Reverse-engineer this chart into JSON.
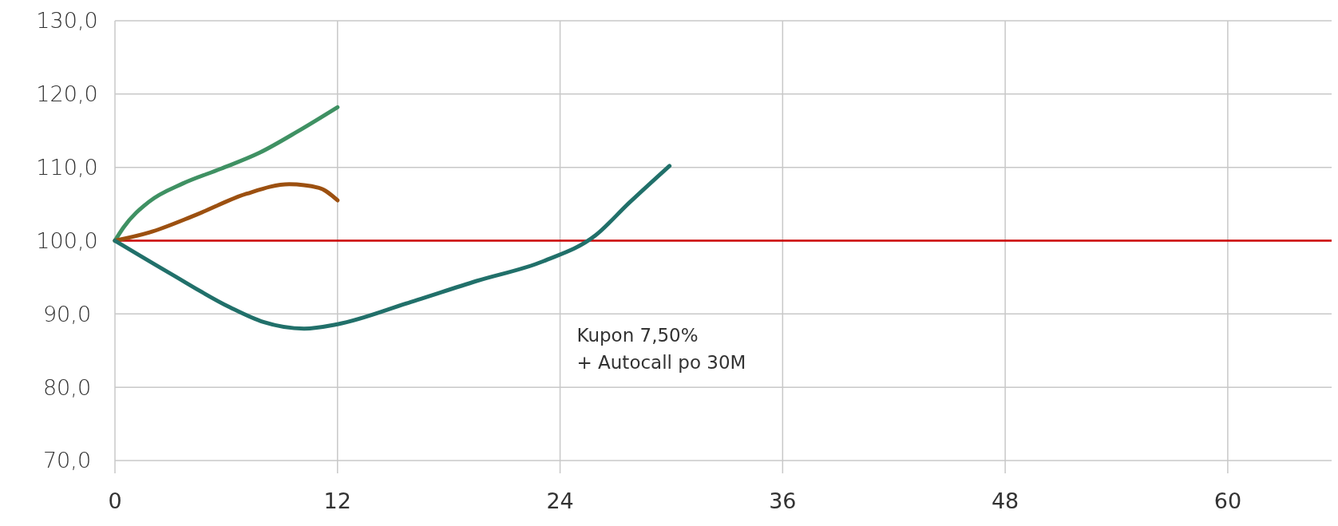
{
  "chart_data": {
    "type": "line",
    "xlim": [
      0,
      65.6
    ],
    "ylim": [
      70,
      130
    ],
    "xticks": [
      0,
      12,
      24,
      36,
      48,
      60
    ],
    "yticks": [
      {
        "value": 70,
        "label": "70,0"
      },
      {
        "value": 80,
        "label": "80,0"
      },
      {
        "value": 90,
        "label": "90,0"
      },
      {
        "value": 100,
        "label": "100,0"
      },
      {
        "value": 110,
        "label": "110,0"
      },
      {
        "value": 120,
        "label": "120,0"
      },
      {
        "value": 130,
        "label": "130,0"
      }
    ],
    "grid": true,
    "line_style": "solid",
    "marker": "none",
    "series": [
      {
        "color": "#3f9163",
        "x": [
          0,
          0.46,
          1.83,
          3.66,
          5.7,
          7.8,
          9.85,
          12
        ],
        "values": [
          100,
          101.8,
          105.3,
          107.8,
          109.8,
          112,
          114.9,
          118.2
        ]
      },
      {
        "color": "#9c5010",
        "x": [
          0,
          1.83,
          4.35,
          7.1,
          9.4,
          11,
          12
        ],
        "values": [
          100,
          101.1,
          103.5,
          106.4,
          107.7,
          107.2,
          105.5
        ]
      },
      {
        "color": "#21706a",
        "x": [
          0,
          3,
          6.2,
          8,
          10.2,
          12,
          15.8,
          19.5,
          23.1,
          25.9,
          27.7,
          29.9
        ],
        "values": [
          100,
          95.5,
          90.9,
          88.9,
          88,
          88.6,
          91.5,
          94.5,
          97.2,
          100.7,
          105.1,
          110.2
        ]
      }
    ],
    "ref_lines": [
      {
        "axis": "y",
        "value": 100,
        "color": "#cc0000"
      }
    ],
    "annotations": [
      "Kupon 7,50%\n+ Autocall po 30M"
    ]
  }
}
